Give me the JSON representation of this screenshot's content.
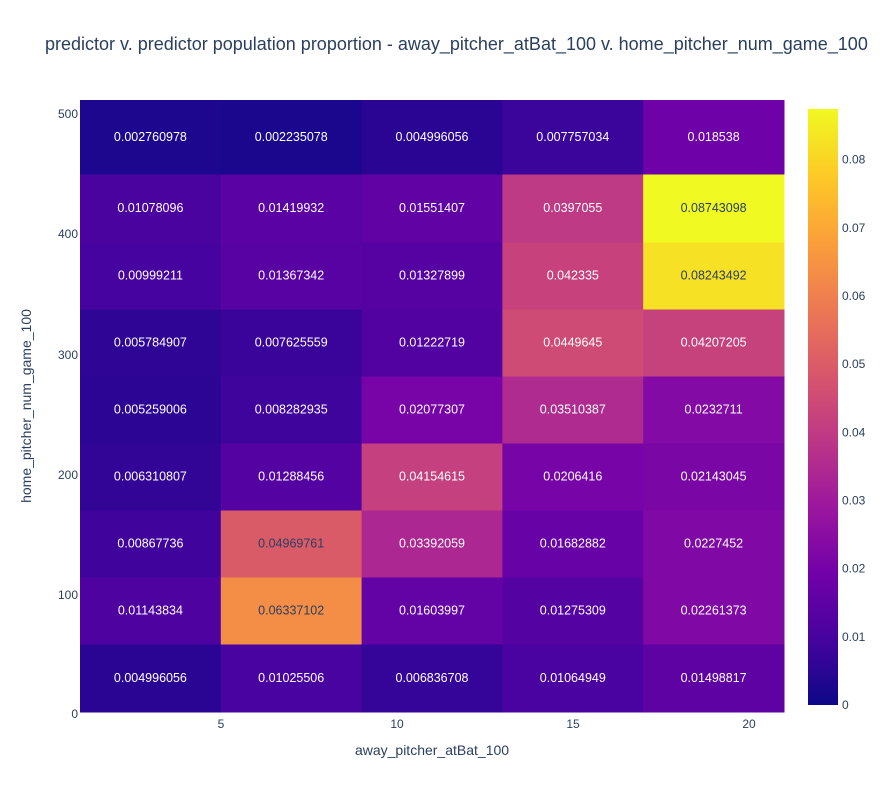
{
  "chart_data": {
    "type": "heatmap",
    "title": "predictor v. predictor population proportion - away_pitcher_atBat_100 v. home_pitcher_num_game_100",
    "xlabel": "away_pitcher_atBat_100",
    "ylabel": "home_pitcher_num_game_100",
    "x_ticks": [
      "5",
      "10",
      "15",
      "20"
    ],
    "y_ticks": [
      "0",
      "100",
      "200",
      "300",
      "400",
      "500"
    ],
    "colorbar_ticks": [
      "0",
      "0.01",
      "0.02",
      "0.03",
      "0.04",
      "0.05",
      "0.06",
      "0.07",
      "0.08"
    ],
    "zmin": 0,
    "zmax": 0.08743098,
    "colorscale": [
      "#0d0887",
      "#46039f",
      "#7201a8",
      "#9c179e",
      "#bd3786",
      "#d8576b",
      "#ed7953",
      "#fb9f3a",
      "#fdca26",
      "#f0f921"
    ],
    "rows": [
      {
        "y_index": 0,
        "values": [
          0.004996056,
          0.01025506,
          0.006836708,
          0.01064949,
          0.01498817
        ],
        "labels": [
          "0.004996056",
          "0.01025506",
          "0.006836708",
          "0.01064949",
          "0.01498817"
        ]
      },
      {
        "y_index": 1,
        "values": [
          0.01143834,
          0.06337102,
          0.01603997,
          0.01275309,
          0.02261373
        ],
        "labels": [
          "0.01143834",
          "0.06337102",
          "0.01603997",
          "0.01275309",
          "0.02261373"
        ]
      },
      {
        "y_index": 2,
        "values": [
          0.00867736,
          0.04969761,
          0.03392059,
          0.01682882,
          0.0227452
        ],
        "labels": [
          "0.00867736",
          "0.04969761",
          "0.03392059",
          "0.01682882",
          "0.0227452"
        ]
      },
      {
        "y_index": 3,
        "values": [
          0.006310807,
          0.01288456,
          0.04154615,
          0.0206416,
          0.02143045
        ],
        "labels": [
          "0.006310807",
          "0.01288456",
          "0.04154615",
          "0.0206416",
          "0.02143045"
        ]
      },
      {
        "y_index": 4,
        "values": [
          0.005259006,
          0.008282935,
          0.02077307,
          0.03510387,
          0.0232711
        ],
        "labels": [
          "0.005259006",
          "0.008282935",
          "0.02077307",
          "0.03510387",
          "0.0232711"
        ]
      },
      {
        "y_index": 5,
        "values": [
          0.005784907,
          0.007625559,
          0.01222719,
          0.0449645,
          0.04207205
        ],
        "labels": [
          "0.005784907",
          "0.007625559",
          "0.01222719",
          "0.0449645",
          "0.04207205"
        ]
      },
      {
        "y_index": 6,
        "values": [
          0.00999211,
          0.01367342,
          0.01327899,
          0.042335,
          0.08243492
        ],
        "labels": [
          "0.00999211",
          "0.01367342",
          "0.01327899",
          "0.042335",
          "0.08243492"
        ]
      },
      {
        "y_index": 7,
        "values": [
          0.01078096,
          0.01419932,
          0.01551407,
          0.0397055,
          0.08743098
        ],
        "labels": [
          "0.01078096",
          "0.01419932",
          "0.01551407",
          "0.0397055",
          "0.08743098"
        ]
      },
      {
        "y_index": 8,
        "values": [
          0.002760978,
          0.002235078,
          0.004996056,
          0.007757034,
          0.018538
        ],
        "labels": [
          "0.002760978",
          "0.002235078",
          "0.004996056",
          "0.007757034",
          "0.018538"
        ]
      }
    ]
  }
}
